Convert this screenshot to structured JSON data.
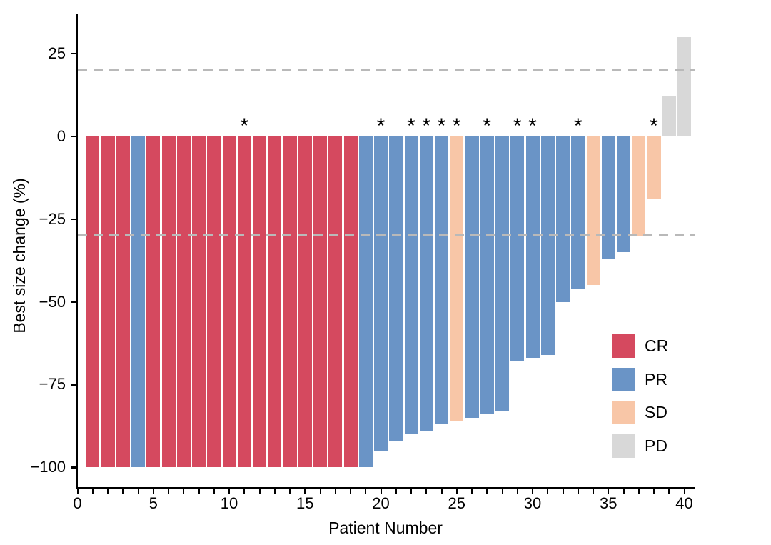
{
  "chart_data": {
    "type": "bar",
    "subtype": "waterfall",
    "title": "",
    "xlabel": "Patient Number",
    "ylabel": "Best size change (%)",
    "xlim": [
      0,
      40.7
    ],
    "ylim": [
      -106,
      37
    ],
    "grid": false,
    "x_tick_minor_every": 1,
    "x_tick_labels": [
      {
        "value": 0,
        "label": "0"
      },
      {
        "value": 5,
        "label": "5"
      },
      {
        "value": 10,
        "label": "10"
      },
      {
        "value": 15,
        "label": "15"
      },
      {
        "value": 20,
        "label": "20"
      },
      {
        "value": 25,
        "label": "25"
      },
      {
        "value": 30,
        "label": "30"
      },
      {
        "value": 35,
        "label": "35"
      },
      {
        "value": 40,
        "label": "40"
      }
    ],
    "y_tick_labels": [
      {
        "value": 25,
        "label": "25"
      },
      {
        "value": 0,
        "label": "0"
      },
      {
        "value": -25,
        "label": "−25"
      },
      {
        "value": -50,
        "label": "−50"
      },
      {
        "value": -75,
        "label": "−75"
      },
      {
        "value": -100,
        "label": "−100"
      }
    ],
    "reference_lines": [
      {
        "y": 20,
        "style": "dashed",
        "color": "#b9b9b9"
      },
      {
        "y": -30,
        "style": "dashed",
        "color": "#b9b9b9"
      }
    ],
    "annotation_symbol": "*",
    "response_colors": {
      "CR": "#d5495f",
      "PR": "#6a94c6",
      "SD": "#f8c6a7",
      "PD": "#d8d8d8"
    },
    "legend": {
      "position": "right-middle",
      "entries": [
        {
          "label": "CR",
          "color": "#d5495f"
        },
        {
          "label": "PR",
          "color": "#6a94c6"
        },
        {
          "label": "SD",
          "color": "#f8c6a7"
        },
        {
          "label": "PD",
          "color": "#d8d8d8"
        }
      ]
    },
    "patients": [
      {
        "n": 1,
        "value": -100,
        "response": "CR",
        "star": false
      },
      {
        "n": 2,
        "value": -100,
        "response": "CR",
        "star": false
      },
      {
        "n": 3,
        "value": -100,
        "response": "CR",
        "star": false
      },
      {
        "n": 4,
        "value": -100,
        "response": "PR",
        "star": false
      },
      {
        "n": 5,
        "value": -100,
        "response": "CR",
        "star": false
      },
      {
        "n": 6,
        "value": -100,
        "response": "CR",
        "star": false
      },
      {
        "n": 7,
        "value": -100,
        "response": "CR",
        "star": false
      },
      {
        "n": 8,
        "value": -100,
        "response": "CR",
        "star": false
      },
      {
        "n": 9,
        "value": -100,
        "response": "CR",
        "star": false
      },
      {
        "n": 10,
        "value": -100,
        "response": "CR",
        "star": false
      },
      {
        "n": 11,
        "value": -100,
        "response": "CR",
        "star": true
      },
      {
        "n": 12,
        "value": -100,
        "response": "CR",
        "star": false
      },
      {
        "n": 13,
        "value": -100,
        "response": "CR",
        "star": false
      },
      {
        "n": 14,
        "value": -100,
        "response": "CR",
        "star": false
      },
      {
        "n": 15,
        "value": -100,
        "response": "CR",
        "star": false
      },
      {
        "n": 16,
        "value": -100,
        "response": "CR",
        "star": false
      },
      {
        "n": 17,
        "value": -100,
        "response": "CR",
        "star": false
      },
      {
        "n": 18,
        "value": -100,
        "response": "CR",
        "star": false
      },
      {
        "n": 19,
        "value": -100,
        "response": "PR",
        "star": false
      },
      {
        "n": 20,
        "value": -95,
        "response": "PR",
        "star": true
      },
      {
        "n": 21,
        "value": -92,
        "response": "PR",
        "star": false
      },
      {
        "n": 22,
        "value": -90,
        "response": "PR",
        "star": true
      },
      {
        "n": 23,
        "value": -89,
        "response": "PR",
        "star": true
      },
      {
        "n": 24,
        "value": -87,
        "response": "PR",
        "star": true
      },
      {
        "n": 25,
        "value": -86,
        "response": "SD",
        "star": true
      },
      {
        "n": 26,
        "value": -85,
        "response": "PR",
        "star": false
      },
      {
        "n": 27,
        "value": -84,
        "response": "PR",
        "star": true
      },
      {
        "n": 28,
        "value": -83,
        "response": "PR",
        "star": false
      },
      {
        "n": 29,
        "value": -68,
        "response": "PR",
        "star": true
      },
      {
        "n": 30,
        "value": -67,
        "response": "PR",
        "star": true
      },
      {
        "n": 31,
        "value": -66,
        "response": "PR",
        "star": false
      },
      {
        "n": 32,
        "value": -50,
        "response": "PR",
        "star": false
      },
      {
        "n": 33,
        "value": -46,
        "response": "PR",
        "star": true
      },
      {
        "n": 34,
        "value": -45,
        "response": "SD",
        "star": false
      },
      {
        "n": 35,
        "value": -37,
        "response": "PR",
        "star": false
      },
      {
        "n": 36,
        "value": -35,
        "response": "PR",
        "star": false
      },
      {
        "n": 37,
        "value": -30,
        "response": "SD",
        "star": false
      },
      {
        "n": 38,
        "value": -19,
        "response": "SD",
        "star": true
      },
      {
        "n": 39,
        "value": 12,
        "response": "PD",
        "star": false
      },
      {
        "n": 40,
        "value": 30,
        "response": "PD",
        "star": false
      }
    ]
  }
}
